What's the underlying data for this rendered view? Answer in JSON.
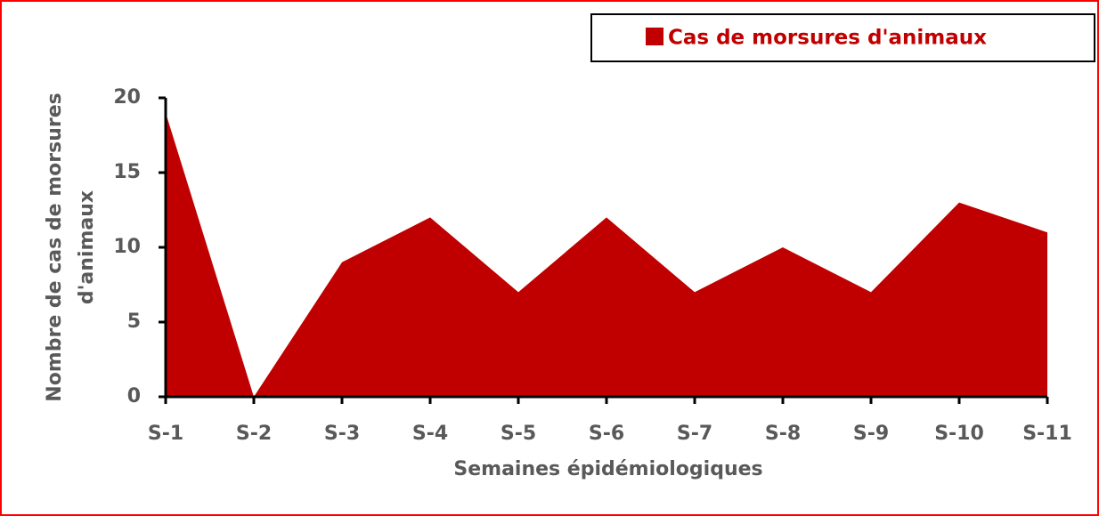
{
  "chart_data": {
    "type": "area",
    "xlabel": "Semaines épidémiologiques",
    "ylabel": [
      "Nombre de cas de morsures",
      "d'animaux"
    ],
    "categories": [
      "S-1",
      "S-2",
      "S-3",
      "S-4",
      "S-5",
      "S-6",
      "S-7",
      "S-8",
      "S-9",
      "S-10",
      "S-11"
    ],
    "series": [
      {
        "name": "Cas de morsures d'animaux",
        "color": "#c00000",
        "values": [
          19,
          0,
          9,
          12,
          7,
          12,
          7,
          10,
          7,
          13,
          11
        ]
      }
    ],
    "ylim": [
      0,
      20
    ],
    "yticks": [
      0,
      5,
      10,
      15,
      20
    ],
    "grid": false,
    "legend": "top-right"
  }
}
